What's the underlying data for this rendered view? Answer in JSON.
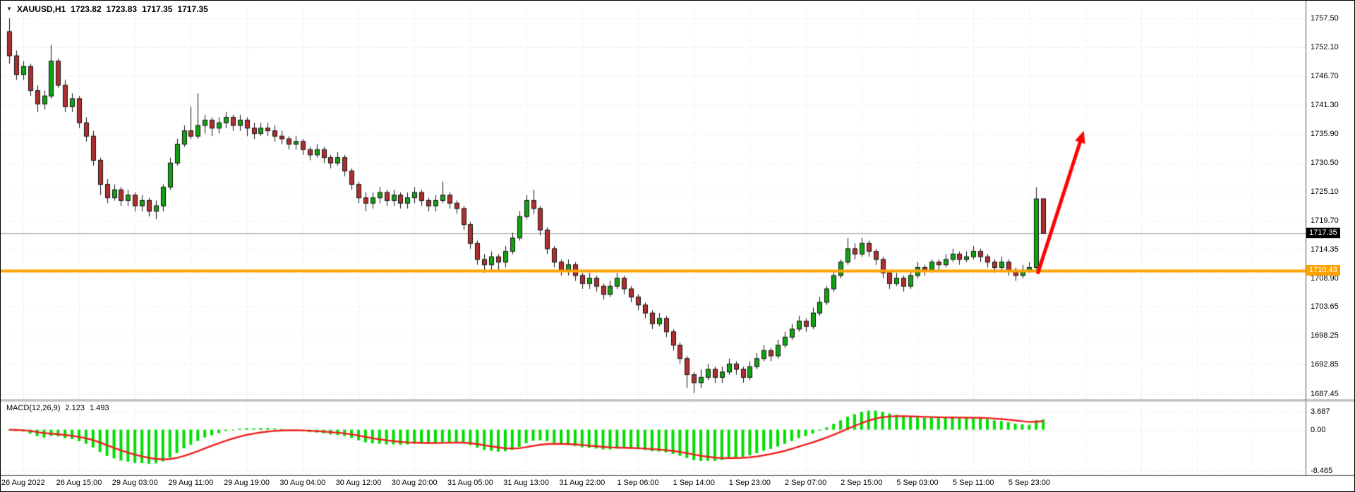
{
  "header": {
    "dropdown_glyph": "▼",
    "symbol": "XAUUSD,H1",
    "open": "1723.82",
    "high": "1723.83",
    "low": "1717.35",
    "close": "1717.35"
  },
  "macd_label": {
    "name": "MACD(12,26,9)",
    "main_value": "2.123",
    "signal_value": "1.493"
  },
  "chart_data": {
    "type": "candlestick",
    "symbol": "XAUUSD",
    "timeframe": "H1",
    "title": "XAUUSD,H1 1723.82 1723.83 1717.35 1717.35",
    "price_range": [
      1686.6,
      1759.2
    ],
    "price_axis_labels": [
      "1757.50",
      "1752.10",
      "1746.70",
      "1741.30",
      "1735.90",
      "1730.50",
      "1725.10",
      "1719.70",
      "1714.35",
      "1708.90",
      "1703.65",
      "1698.25",
      "1692.85",
      "1687.45"
    ],
    "time_labels": [
      {
        "text": "26 Aug 2022",
        "bar": 2
      },
      {
        "text": "26 Aug 15:00",
        "bar": 10
      },
      {
        "text": "29 Aug 03:00",
        "bar": 18
      },
      {
        "text": "29 Aug 11:00",
        "bar": 26
      },
      {
        "text": "29 Aug 19:00",
        "bar": 34
      },
      {
        "text": "30 Aug 04:00",
        "bar": 42
      },
      {
        "text": "30 Aug 12:00",
        "bar": 50
      },
      {
        "text": "30 Aug 20:00",
        "bar": 58
      },
      {
        "text": "31 Aug 05:00",
        "bar": 66
      },
      {
        "text": "31 Aug 13:00",
        "bar": 74
      },
      {
        "text": "31 Aug 22:00",
        "bar": 82
      },
      {
        "text": "1 Sep 06:00",
        "bar": 90
      },
      {
        "text": "1 Sep 14:00",
        "bar": 98
      },
      {
        "text": "1 Sep 23:00",
        "bar": 106
      },
      {
        "text": "2 Sep 07:00",
        "bar": 114
      },
      {
        "text": "2 Sep 15:00",
        "bar": 122
      },
      {
        "text": "5 Sep 03:00",
        "bar": 130
      },
      {
        "text": "5 Sep 11:00",
        "bar": 138
      },
      {
        "text": "5 Sep 23:00",
        "bar": 146
      }
    ],
    "candles": [
      [
        1755.0,
        1757.5,
        1749.0,
        1750.5
      ],
      [
        1750.5,
        1751.5,
        1746.0,
        1747.0
      ],
      [
        1747.0,
        1749.5,
        1746.0,
        1748.5
      ],
      [
        1748.5,
        1749.0,
        1743.0,
        1744.0
      ],
      [
        1744.0,
        1745.0,
        1740.0,
        1741.5
      ],
      [
        1741.5,
        1744.0,
        1740.5,
        1743.0
      ],
      [
        1743.0,
        1752.5,
        1742.5,
        1749.5
      ],
      [
        1749.5,
        1750.0,
        1744.5,
        1745.0
      ],
      [
        1745.0,
        1746.0,
        1740.0,
        1741.0
      ],
      [
        1741.0,
        1743.5,
        1740.0,
        1742.5
      ],
      [
        1742.5,
        1743.0,
        1737.0,
        1738.0
      ],
      [
        1738.0,
        1739.0,
        1734.5,
        1735.5
      ],
      [
        1735.5,
        1736.5,
        1730.0,
        1731.0
      ],
      [
        1731.0,
        1731.5,
        1724.5,
        1726.5
      ],
      [
        1726.5,
        1727.5,
        1723.0,
        1724.0
      ],
      [
        1724.0,
        1726.5,
        1723.5,
        1725.5
      ],
      [
        1725.5,
        1726.0,
        1722.5,
        1723.5
      ],
      [
        1723.5,
        1725.5,
        1722.5,
        1724.5
      ],
      [
        1724.5,
        1725.0,
        1721.5,
        1722.5
      ],
      [
        1722.5,
        1724.5,
        1721.5,
        1723.5
      ],
      [
        1723.5,
        1724.0,
        1720.5,
        1721.5
      ],
      [
        1721.5,
        1723.5,
        1720.0,
        1722.5
      ],
      [
        1722.5,
        1726.5,
        1721.5,
        1726.0
      ],
      [
        1726.0,
        1731.5,
        1725.5,
        1730.5
      ],
      [
        1730.5,
        1735.0,
        1730.0,
        1734.0
      ],
      [
        1734.0,
        1737.5,
        1733.5,
        1736.5
      ],
      [
        1736.5,
        1741.0,
        1735.0,
        1735.5
      ],
      [
        1735.5,
        1743.5,
        1735.0,
        1737.5
      ],
      [
        1737.5,
        1739.5,
        1736.0,
        1738.5
      ],
      [
        1738.5,
        1739.0,
        1735.5,
        1737.0
      ],
      [
        1737.0,
        1739.0,
        1736.0,
        1738.0
      ],
      [
        1738.0,
        1740.0,
        1737.0,
        1739.0
      ],
      [
        1739.0,
        1739.5,
        1736.5,
        1737.5
      ],
      [
        1737.5,
        1739.5,
        1736.5,
        1738.5
      ],
      [
        1738.5,
        1739.0,
        1735.5,
        1737.0
      ],
      [
        1737.0,
        1738.0,
        1735.0,
        1736.0
      ],
      [
        1736.0,
        1738.0,
        1735.5,
        1737.0
      ],
      [
        1737.0,
        1738.0,
        1735.5,
        1736.5
      ],
      [
        1736.5,
        1737.5,
        1734.5,
        1735.5
      ],
      [
        1735.5,
        1736.5,
        1734.0,
        1735.0
      ],
      [
        1735.0,
        1735.5,
        1733.0,
        1734.0
      ],
      [
        1734.0,
        1735.5,
        1733.0,
        1734.5
      ],
      [
        1734.5,
        1735.0,
        1732.0,
        1733.0
      ],
      [
        1733.0,
        1733.5,
        1731.0,
        1732.0
      ],
      [
        1732.0,
        1734.0,
        1731.5,
        1733.0
      ],
      [
        1733.0,
        1733.5,
        1730.5,
        1731.5
      ],
      [
        1731.5,
        1732.0,
        1729.5,
        1730.5
      ],
      [
        1730.5,
        1732.5,
        1730.0,
        1731.5
      ],
      [
        1731.5,
        1732.0,
        1728.0,
        1729.0
      ],
      [
        1729.0,
        1729.5,
        1725.5,
        1726.5
      ],
      [
        1726.5,
        1727.0,
        1723.0,
        1724.0
      ],
      [
        1724.0,
        1725.0,
        1721.5,
        1723.0
      ],
      [
        1723.0,
        1725.0,
        1722.0,
        1724.0
      ],
      [
        1724.0,
        1726.0,
        1723.0,
        1725.0
      ],
      [
        1725.0,
        1725.5,
        1722.5,
        1723.5
      ],
      [
        1723.5,
        1725.5,
        1722.5,
        1724.5
      ],
      [
        1724.5,
        1725.0,
        1722.0,
        1723.0
      ],
      [
        1723.0,
        1725.0,
        1722.0,
        1724.0
      ],
      [
        1724.0,
        1726.0,
        1723.0,
        1725.0
      ],
      [
        1725.0,
        1725.5,
        1722.5,
        1723.5
      ],
      [
        1723.5,
        1724.0,
        1721.5,
        1722.5
      ],
      [
        1722.5,
        1724.5,
        1721.5,
        1723.5
      ],
      [
        1723.5,
        1727.0,
        1723.0,
        1724.5
      ],
      [
        1724.5,
        1725.0,
        1722.0,
        1723.0
      ],
      [
        1723.0,
        1723.5,
        1721.0,
        1722.0
      ],
      [
        1722.0,
        1722.5,
        1718.0,
        1719.0
      ],
      [
        1719.0,
        1719.5,
        1714.5,
        1715.5
      ],
      [
        1715.5,
        1716.0,
        1711.5,
        1712.5
      ],
      [
        1712.5,
        1713.5,
        1710.0,
        1711.5
      ],
      [
        1711.5,
        1714.0,
        1710.5,
        1713.0
      ],
      [
        1713.0,
        1713.5,
        1710.5,
        1712.0
      ],
      [
        1712.0,
        1715.0,
        1711.0,
        1714.0
      ],
      [
        1714.0,
        1717.5,
        1713.5,
        1716.5
      ],
      [
        1716.5,
        1721.5,
        1716.0,
        1720.5
      ],
      [
        1720.5,
        1724.5,
        1720.0,
        1723.5
      ],
      [
        1723.5,
        1725.5,
        1721.0,
        1722.0
      ],
      [
        1722.0,
        1722.5,
        1717.0,
        1718.0
      ],
      [
        1718.0,
        1718.5,
        1713.5,
        1714.5
      ],
      [
        1714.5,
        1715.0,
        1711.0,
        1712.0
      ],
      [
        1712.0,
        1712.5,
        1709.5,
        1710.5
      ],
      [
        1710.5,
        1712.5,
        1709.5,
        1711.5
      ],
      [
        1711.5,
        1712.0,
        1708.5,
        1709.5
      ],
      [
        1709.5,
        1710.0,
        1707.0,
        1708.0
      ],
      [
        1708.0,
        1710.0,
        1707.0,
        1709.0
      ],
      [
        1709.0,
        1709.5,
        1706.5,
        1707.5
      ],
      [
        1707.5,
        1708.0,
        1705.0,
        1706.0
      ],
      [
        1706.0,
        1708.5,
        1705.5,
        1707.5
      ],
      [
        1707.5,
        1710.0,
        1707.0,
        1709.0
      ],
      [
        1709.0,
        1709.5,
        1706.0,
        1707.0
      ],
      [
        1707.0,
        1707.5,
        1704.5,
        1705.5
      ],
      [
        1705.5,
        1706.0,
        1703.0,
        1704.0
      ],
      [
        1704.0,
        1704.5,
        1701.5,
        1702.5
      ],
      [
        1702.5,
        1703.0,
        1699.5,
        1700.5
      ],
      [
        1700.5,
        1702.5,
        1700.0,
        1701.5
      ],
      [
        1701.5,
        1702.0,
        1698.0,
        1699.0
      ],
      [
        1699.0,
        1699.5,
        1695.5,
        1696.5
      ],
      [
        1696.5,
        1697.0,
        1693.0,
        1694.0
      ],
      [
        1694.0,
        1694.5,
        1688.5,
        1691.0
      ],
      [
        1691.0,
        1691.5,
        1687.6,
        1689.5
      ],
      [
        1689.5,
        1692.0,
        1688.5,
        1690.5
      ],
      [
        1690.5,
        1693.0,
        1690.0,
        1692.0
      ],
      [
        1692.0,
        1692.5,
        1689.5,
        1690.5
      ],
      [
        1690.5,
        1692.5,
        1689.5,
        1691.5
      ],
      [
        1691.5,
        1694.0,
        1691.0,
        1693.0
      ],
      [
        1693.0,
        1693.5,
        1691.0,
        1692.0
      ],
      [
        1692.0,
        1692.5,
        1689.5,
        1690.5
      ],
      [
        1690.5,
        1693.5,
        1690.0,
        1692.5
      ],
      [
        1692.5,
        1695.0,
        1692.0,
        1694.0
      ],
      [
        1694.0,
        1696.5,
        1693.5,
        1695.5
      ],
      [
        1695.5,
        1696.0,
        1693.5,
        1694.5
      ],
      [
        1694.5,
        1697.5,
        1694.0,
        1696.5
      ],
      [
        1696.5,
        1699.0,
        1696.0,
        1698.0
      ],
      [
        1698.0,
        1700.5,
        1697.5,
        1699.5
      ],
      [
        1699.5,
        1702.0,
        1699.0,
        1701.0
      ],
      [
        1701.0,
        1701.5,
        1699.0,
        1700.0
      ],
      [
        1700.0,
        1703.5,
        1699.5,
        1702.5
      ],
      [
        1702.5,
        1705.5,
        1702.0,
        1704.5
      ],
      [
        1704.5,
        1707.5,
        1704.0,
        1707.0
      ],
      [
        1707.0,
        1710.5,
        1706.5,
        1709.5
      ],
      [
        1709.5,
        1712.5,
        1709.0,
        1712.0
      ],
      [
        1712.0,
        1716.5,
        1711.5,
        1714.5
      ],
      [
        1714.5,
        1715.5,
        1712.5,
        1713.5
      ],
      [
        1713.5,
        1716.5,
        1713.0,
        1715.5
      ],
      [
        1715.5,
        1716.0,
        1713.0,
        1714.0
      ],
      [
        1714.0,
        1714.5,
        1711.5,
        1712.5
      ],
      [
        1712.5,
        1713.0,
        1709.0,
        1710.0
      ],
      [
        1710.0,
        1710.5,
        1707.0,
        1708.0
      ],
      [
        1708.0,
        1710.0,
        1707.5,
        1709.0
      ],
      [
        1709.0,
        1709.5,
        1706.5,
        1707.5
      ],
      [
        1707.5,
        1710.5,
        1707.0,
        1709.5
      ],
      [
        1709.5,
        1712.0,
        1709.0,
        1711.0
      ],
      [
        1711.0,
        1711.5,
        1709.5,
        1710.5
      ],
      [
        1710.5,
        1712.5,
        1710.0,
        1712.0
      ],
      [
        1712.0,
        1712.5,
        1710.5,
        1711.5
      ],
      [
        1711.5,
        1713.5,
        1711.0,
        1712.5
      ],
      [
        1712.5,
        1714.5,
        1712.0,
        1713.5
      ],
      [
        1713.5,
        1714.0,
        1711.5,
        1712.5
      ],
      [
        1712.5,
        1714.0,
        1712.0,
        1713.0
      ],
      [
        1713.0,
        1715.0,
        1712.5,
        1714.0
      ],
      [
        1714.0,
        1714.5,
        1712.0,
        1713.0
      ],
      [
        1713.0,
        1713.5,
        1711.0,
        1712.0
      ],
      [
        1712.0,
        1712.5,
        1710.0,
        1711.0
      ],
      [
        1711.0,
        1713.0,
        1710.5,
        1712.0
      ],
      [
        1712.0,
        1712.5,
        1709.5,
        1710.5
      ],
      [
        1710.5,
        1711.0,
        1708.5,
        1709.5
      ],
      [
        1709.5,
        1711.5,
        1709.0,
        1710.5
      ],
      [
        1710.5,
        1712.0,
        1710.0,
        1711.0
      ],
      [
        1711.0,
        1726.0,
        1710.5,
        1723.8
      ],
      [
        1723.82,
        1723.83,
        1717.35,
        1717.35
      ]
    ],
    "hlines": [
      {
        "price": 1717.35,
        "label": "1717.35",
        "color": "#9a9a9a",
        "width": 1,
        "tag_bg": "#000000",
        "tag_fg": "#ffffff"
      },
      {
        "price": 1710.43,
        "label": "1710.43",
        "color": "#ffa200",
        "width": 4,
        "tag_bg": "#ffa200",
        "tag_fg": "#ffffff"
      }
    ],
    "arrow": {
      "from_bar": 147.2,
      "from_price": 1709.8,
      "to_bar": 153.8,
      "to_price": 1736.5,
      "color": "#ff0000",
      "width": 5
    },
    "macd": {
      "fast": 12,
      "slow": 26,
      "signal": 9,
      "last_main": 2.123,
      "last_signal": 1.493,
      "axis_labels": [
        "3.687",
        "0.00",
        "-8.465"
      ],
      "range": [
        -9.2,
        5.6
      ],
      "histogram_color": "#00dd00",
      "signal_color": "#ee1c1c"
    },
    "colors": {
      "up": "#12a312",
      "down": "#b22e2e",
      "wick": "#111111",
      "grid": "#d9d9d9",
      "axis_line": "#555555",
      "background": "#ffffff"
    }
  }
}
